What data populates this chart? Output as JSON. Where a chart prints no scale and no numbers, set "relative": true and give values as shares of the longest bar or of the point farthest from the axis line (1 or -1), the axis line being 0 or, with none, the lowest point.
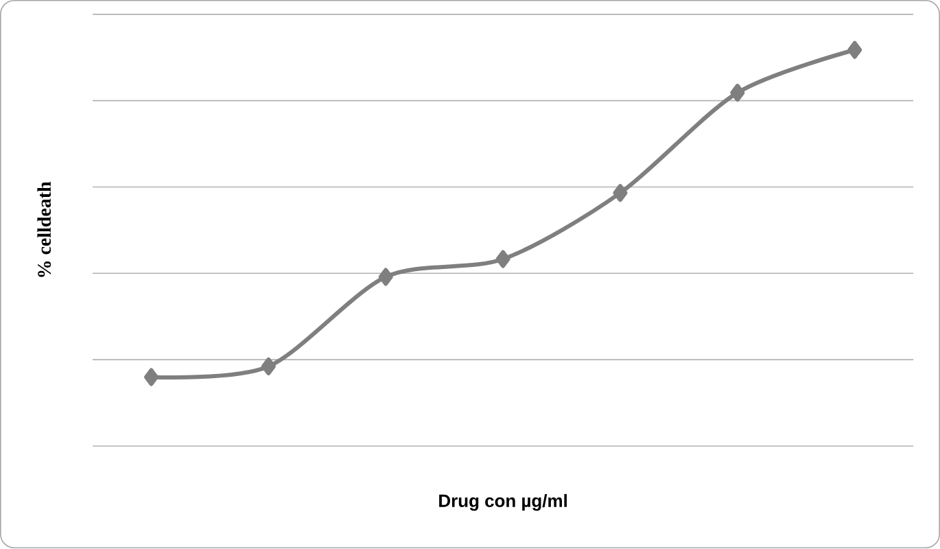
{
  "chart_data": {
    "type": "line",
    "xlabel": "Drug con µg/ml",
    "ylabel": "% celldeath",
    "categories": [
      null,
      null,
      null,
      null,
      null,
      null,
      null
    ],
    "series": [
      {
        "color": "#7f7f7f",
        "values": [
          0.174,
          0.201,
          0.427,
          0.472,
          0.639,
          0.892,
          1.0
        ]
      }
    ],
    "relative": true,
    "grid": "y",
    "marker": "diamond"
  }
}
